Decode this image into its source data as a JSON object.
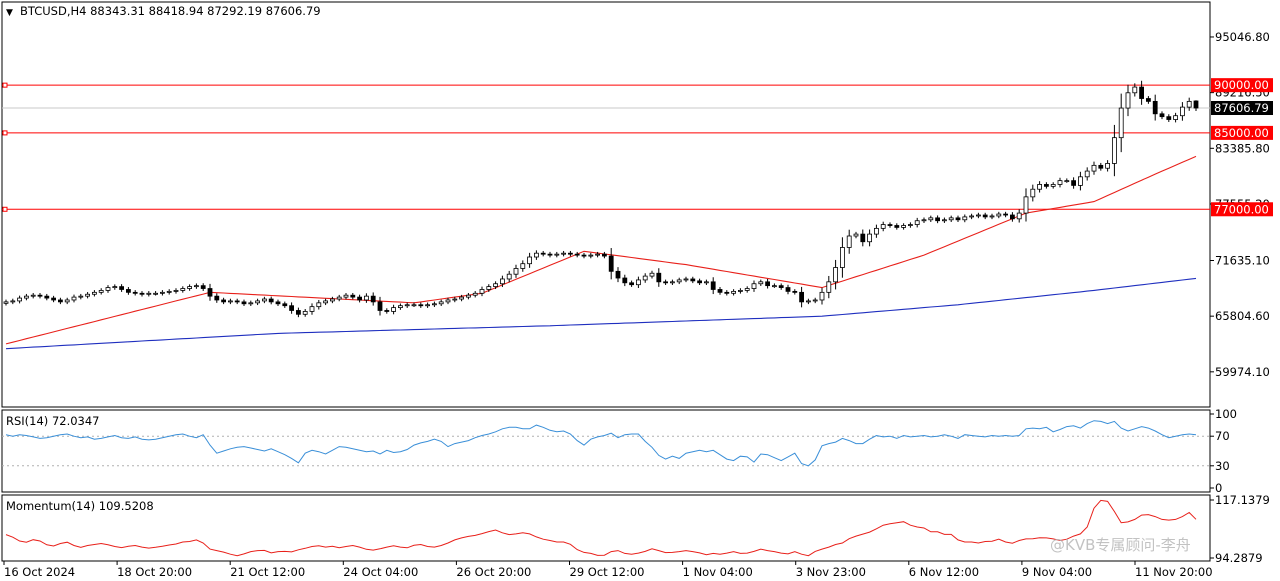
{
  "symbol_header": "BTCUSD,H4  88343.31 88418.94 87292.19 87606.79",
  "colors": {
    "background": "#ffffff",
    "grid_frame": "#000000",
    "ma_fast": "#e8201a",
    "ma_slow": "#1f2fbf",
    "rsi_line": "#3a8fd8",
    "momentum_line": "#e8201a",
    "hline": "#ff0000",
    "level_label_bg": "#ff0000",
    "current_price_bg": "#000000"
  },
  "watermark": "@KVB专属顾问-李舟",
  "chart_data": [
    {
      "type": "candlestick",
      "title": "BTCUSD,H4",
      "ohlc_readout": {
        "open": 88343.31,
        "high": 88418.94,
        "low": 87292.19,
        "close": 87606.79
      },
      "current_price": "87606.79",
      "ylim": [
        56500,
        98500
      ],
      "y_ticks": [
        "95046.80",
        "89216.50",
        "83385.80",
        "77555.20",
        "71635.10",
        "65804.60",
        "59974.10"
      ],
      "x_ticks": [
        "16 Oct 2024",
        "18 Oct 20:00",
        "21 Oct 12:00",
        "24 Oct 04:00",
        "26 Oct 20:00",
        "29 Oct 12:00",
        "1 Nov 04:00",
        "3 Nov 23:00",
        "6 Nov 12:00",
        "9 Nov 04:00",
        "11 Nov 20:00"
      ],
      "horizontal_levels": [
        {
          "label": "90000.00",
          "value": 90000
        },
        {
          "label": "85000.00",
          "value": 85000
        },
        {
          "label": "77000.00",
          "value": 77000
        }
      ],
      "close_series": [
        67300,
        67400,
        67700,
        67900,
        68000,
        67900,
        67700,
        67500,
        67300,
        67500,
        67800,
        67900,
        68100,
        68300,
        68500,
        68800,
        68900,
        68600,
        68300,
        68200,
        68100,
        68200,
        68200,
        68300,
        68400,
        68500,
        68700,
        68900,
        69000,
        68700,
        67900,
        67500,
        67300,
        67400,
        67300,
        67100,
        67200,
        67400,
        67600,
        67300,
        67100,
        66900,
        66400,
        66000,
        66300,
        66800,
        67200,
        67400,
        67600,
        67800,
        68000,
        67800,
        67500,
        67900,
        67300,
        66400,
        66300,
        66700,
        66900,
        67000,
        67000,
        66900,
        67000,
        67100,
        67300,
        67500,
        67600,
        67800,
        68000,
        68200,
        68600,
        68900,
        69200,
        69700,
        70200,
        70800,
        71300,
        72000,
        72400,
        72300,
        72200,
        72300,
        72400,
        72300,
        72200,
        72100,
        72200,
        72300,
        72100,
        70500,
        69800,
        69300,
        69100,
        69600,
        70000,
        70300,
        69400,
        69300,
        69400,
        69600,
        69700,
        69500,
        69300,
        69400,
        68600,
        68300,
        68200,
        68400,
        68500,
        68700,
        69200,
        69400,
        69000,
        69000,
        68800,
        68400,
        68300,
        67300,
        67400,
        67500,
        68300,
        69400,
        70900,
        73000,
        74200,
        74400,
        73600,
        74400,
        75000,
        75400,
        75300,
        75100,
        75300,
        75400,
        75800,
        75900,
        76100,
        75800,
        75900,
        76100,
        75900,
        76200,
        76300,
        76400,
        76200,
        76300,
        76500,
        76400,
        76000,
        76600,
        78300,
        79100,
        79600,
        79400,
        79600,
        80000,
        80000,
        79500,
        80400,
        81000,
        81600,
        81300,
        81800,
        84500,
        87600,
        89200,
        89800,
        88600,
        88300,
        87000,
        86700,
        86400,
        86800,
        87700,
        88300,
        87606.79
      ],
      "ma_fast_series": [
        {
          "index": 0,
          "value": 62900
        },
        {
          "index": 30,
          "value": 68300
        },
        {
          "index": 60,
          "value": 67200
        },
        {
          "index": 70,
          "value": 68200
        },
        {
          "index": 85,
          "value": 72600
        },
        {
          "index": 100,
          "value": 71200
        },
        {
          "index": 120,
          "value": 68800
        },
        {
          "index": 135,
          "value": 72200
        },
        {
          "index": 150,
          "value": 76600
        },
        {
          "index": 160,
          "value": 77800
        },
        {
          "index": 170,
          "value": 81000
        },
        {
          "index": 185,
          "value": 85600
        }
      ],
      "ma_slow_series": [
        {
          "index": 0,
          "value": 62400
        },
        {
          "index": 40,
          "value": 64000
        },
        {
          "index": 80,
          "value": 64800
        },
        {
          "index": 120,
          "value": 65800
        },
        {
          "index": 140,
          "value": 67000
        },
        {
          "index": 160,
          "value": 68500
        },
        {
          "index": 185,
          "value": 70600
        }
      ]
    },
    {
      "type": "line",
      "title": "RSI(14) 72.0347",
      "ylim": [
        0,
        100
      ],
      "y_ticks": [
        "100",
        "70",
        "30",
        "0"
      ],
      "levels": [
        70,
        30
      ],
      "values": [
        72,
        70,
        72,
        71,
        69,
        67,
        68,
        70,
        72,
        73,
        70,
        68,
        69,
        66,
        67,
        69,
        71,
        68,
        67,
        69,
        66,
        65,
        66,
        68,
        70,
        72,
        73,
        70,
        68,
        72,
        58,
        47,
        50,
        53,
        55,
        56,
        54,
        52,
        50,
        53,
        49,
        45,
        40,
        34,
        47,
        51,
        49,
        46,
        51,
        56,
        55,
        53,
        51,
        49,
        50,
        46,
        51,
        48,
        49,
        52,
        58,
        61,
        63,
        66,
        63,
        56,
        60,
        62,
        64,
        68,
        71,
        73,
        76,
        80,
        82,
        82,
        80,
        80,
        85,
        82,
        78,
        76,
        77,
        73,
        64,
        58,
        66,
        69,
        71,
        74,
        68,
        72,
        73,
        73,
        63,
        55,
        44,
        39,
        43,
        40,
        47,
        49,
        51,
        49,
        51,
        45,
        39,
        37,
        43,
        42,
        35,
        46,
        45,
        41,
        37,
        42,
        47,
        33,
        30,
        38,
        57,
        60,
        62,
        67,
        64,
        60,
        60,
        66,
        71,
        69,
        70,
        67,
        71,
        69,
        70,
        71,
        69,
        70,
        72,
        70,
        67,
        72,
        71,
        70,
        69,
        71,
        70,
        71,
        70,
        71,
        80,
        81,
        80,
        82,
        76,
        79,
        83,
        84,
        81,
        87,
        91,
        90,
        87,
        90,
        81,
        77,
        80,
        83,
        81,
        77,
        72,
        68,
        70,
        72,
        73,
        72
      ]
    },
    {
      "type": "line",
      "title": "Momentum(14) 109.5208",
      "ylim": [
        94.2879,
        117.1379
      ],
      "y_ticks": [
        "117.1379",
        "94.2879"
      ],
      "values": [
        103.5,
        102.5,
        101,
        100.5,
        101.5,
        101,
        99.5,
        99,
        100,
        100.5,
        99.2,
        98.5,
        99.2,
        99.6,
        100,
        99.5,
        98.8,
        98.4,
        98.9,
        99.2,
        98.6,
        98.2,
        98.5,
        98.9,
        99.4,
        99.8,
        100.6,
        100.8,
        101.4,
        100.2,
        97.8,
        97.2,
        96.6,
        95.8,
        95.2,
        95.9,
        96.8,
        97.2,
        97.3,
        96.3,
        96.8,
        96.9,
        96.7,
        97.5,
        98.1,
        98.8,
        99.1,
        98.6,
        98.9,
        98.3,
        98.8,
        99.2,
        98.6,
        97.7,
        97.4,
        97.9,
        98.6,
        99.1,
        98.6,
        98.3,
        99.3,
        99.6,
        98.8,
        98.6,
        99.2,
        100.2,
        101.4,
        102.2,
        102.8,
        103.2,
        103.9,
        104.7,
        105.3,
        104.2,
        103.5,
        103.8,
        104.2,
        103.8,
        102.6,
        101.7,
        101.2,
        100.6,
        100.6,
        99.7,
        97.6,
        96.5,
        96.1,
        95.3,
        95.4,
        96.8,
        97.2,
        96.1,
        95.8,
        96.2,
        96.9,
        97.9,
        97.2,
        96.4,
        96.5,
        96.8,
        97.2,
        96.8,
        96.3,
        95.6,
        96.1,
        95.8,
        96.2,
        96.8,
        96.1,
        96.2,
        96.9,
        97.8,
        97.2,
        96.8,
        96.2,
        95.9,
        96.8,
        95.8,
        95.2,
        96.9,
        97.8,
        98.6,
        99.6,
        100.2,
        101.9,
        102.9,
        103.7,
        104.5,
        105.8,
        107.2,
        107.8,
        108.2,
        108.6,
        107.2,
        106.5,
        106.1,
        104.6,
        104.6,
        103.6,
        103.6,
        101.4,
        100.6,
        100.6,
        100.2,
        100.8,
        100.9,
        101.7,
        100.6,
        100.1,
        101.2,
        101.8,
        101.9,
        102.3,
        102.2,
        101.8,
        101.2,
        101.7,
        102.9,
        103.8,
        106.5,
        113.9,
        117,
        116.6,
        112.6,
        108.2,
        108.5,
        109.5,
        111.2,
        111.4,
        110.6,
        109.5,
        109.2,
        109.5,
        110.6,
        112.2,
        109.5208
      ]
    }
  ]
}
